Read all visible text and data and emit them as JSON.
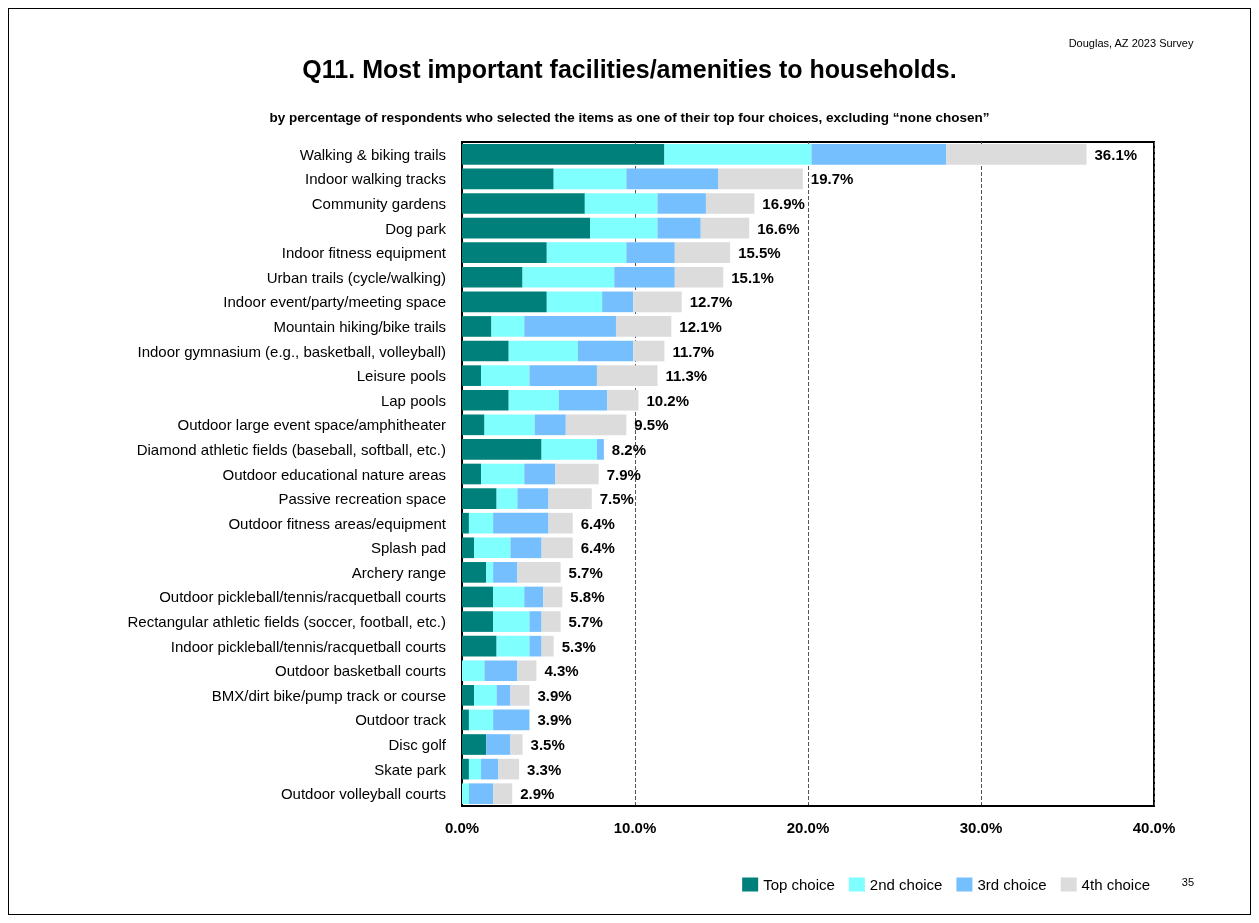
{
  "chart_data": {
    "type": "bar",
    "orientation": "horizontal",
    "stacked": true,
    "title": "Q11. Most important facilities/amenities to households.",
    "subtitle": "by percentage of respondents who selected the items as one of their top four choices, excluding “none chosen”",
    "categories": [
      "Walking & biking trails",
      "Indoor walking tracks",
      "Community gardens",
      "Dog park",
      "Indoor fitness equipment",
      "Urban trails (cycle/walking)",
      "Indoor event/party/meeting space",
      "Mountain hiking/bike trails",
      "Indoor gymnasium (e.g., basketball, volleyball)",
      "Leisure pools",
      "Lap pools",
      "Outdoor large event space/amphitheater",
      "Diamond athletic fields (baseball, softball, etc.)",
      "Outdoor educational nature areas",
      "Passive recreation space",
      "Outdoor fitness areas/equipment",
      "Splash pad",
      "Archery range",
      "Outdoor pickleball/tennis/racquetball courts",
      "Rectangular athletic fields (soccer, football, etc.)",
      "Indoor pickleball/tennis/racquetball courts",
      "Outdoor basketball courts",
      "BMX/dirt bike/pump track or course",
      "Outdoor track",
      "Disc golf",
      "Skate park",
      "Outdoor volleyball courts"
    ],
    "series": [
      {
        "name": "Top choice",
        "color": "#00807a",
        "values": [
          11.7,
          5.3,
          7.1,
          7.4,
          4.9,
          3.5,
          4.9,
          1.7,
          2.7,
          1.1,
          2.7,
          1.3,
          4.6,
          1.1,
          2.0,
          0.4,
          0.7,
          1.4,
          1.8,
          1.8,
          2.0,
          0,
          0.7,
          0.4,
          1.4,
          0.4,
          0
        ]
      },
      {
        "name": "2nd choice",
        "color": "#80ffff",
        "values": [
          8.5,
          4.2,
          4.2,
          3.9,
          4.6,
          5.3,
          3.2,
          1.9,
          4.0,
          2.8,
          2.9,
          2.9,
          3.2,
          2.5,
          1.2,
          1.4,
          2.1,
          0.4,
          1.8,
          2.1,
          1.9,
          1.3,
          1.3,
          1.4,
          0,
          0.7,
          0.4
        ]
      },
      {
        "name": "3rd choice",
        "color": "#75bfff",
        "values": [
          7.8,
          5.3,
          2.8,
          2.5,
          2.8,
          3.5,
          1.8,
          5.3,
          3.2,
          3.9,
          2.8,
          1.8,
          0.4,
          1.8,
          1.8,
          3.2,
          1.8,
          1.4,
          1.1,
          0.7,
          0.7,
          1.9,
          0.8,
          2.1,
          1.4,
          1.0,
          1.4
        ]
      },
      {
        "name": "4th choice",
        "color": "#dcdcdc",
        "values": [
          8.1,
          4.9,
          2.8,
          2.8,
          3.2,
          2.8,
          2.8,
          3.2,
          1.8,
          3.5,
          1.8,
          3.5,
          0,
          2.5,
          2.5,
          1.4,
          1.8,
          2.5,
          1.1,
          1.1,
          0.7,
          1.1,
          1.1,
          0,
          0.7,
          1.2,
          1.1
        ]
      }
    ],
    "totals": [
      "36.1%",
      "19.7%",
      "16.9%",
      "16.6%",
      "15.5%",
      "15.1%",
      "12.7%",
      "12.1%",
      "11.7%",
      "11.3%",
      "10.2%",
      "9.5%",
      "8.2%",
      "7.9%",
      "7.5%",
      "6.4%",
      "6.4%",
      "5.7%",
      "5.8%",
      "5.7%",
      "5.3%",
      "4.3%",
      "3.9%",
      "3.9%",
      "3.5%",
      "3.3%",
      "2.9%"
    ],
    "xlim": [
      0,
      40
    ],
    "xticks": [
      {
        "value": 0,
        "label": "0.0%"
      },
      {
        "value": 10,
        "label": "10.0%"
      },
      {
        "value": 20,
        "label": "20.0%"
      },
      {
        "value": 30,
        "label": "30.0%"
      },
      {
        "value": 40,
        "label": "40.0%"
      }
    ],
    "grid": "x",
    "legend": "bottom right",
    "annotations": [
      "Douglas, AZ 2023 Survey",
      "35"
    ]
  }
}
